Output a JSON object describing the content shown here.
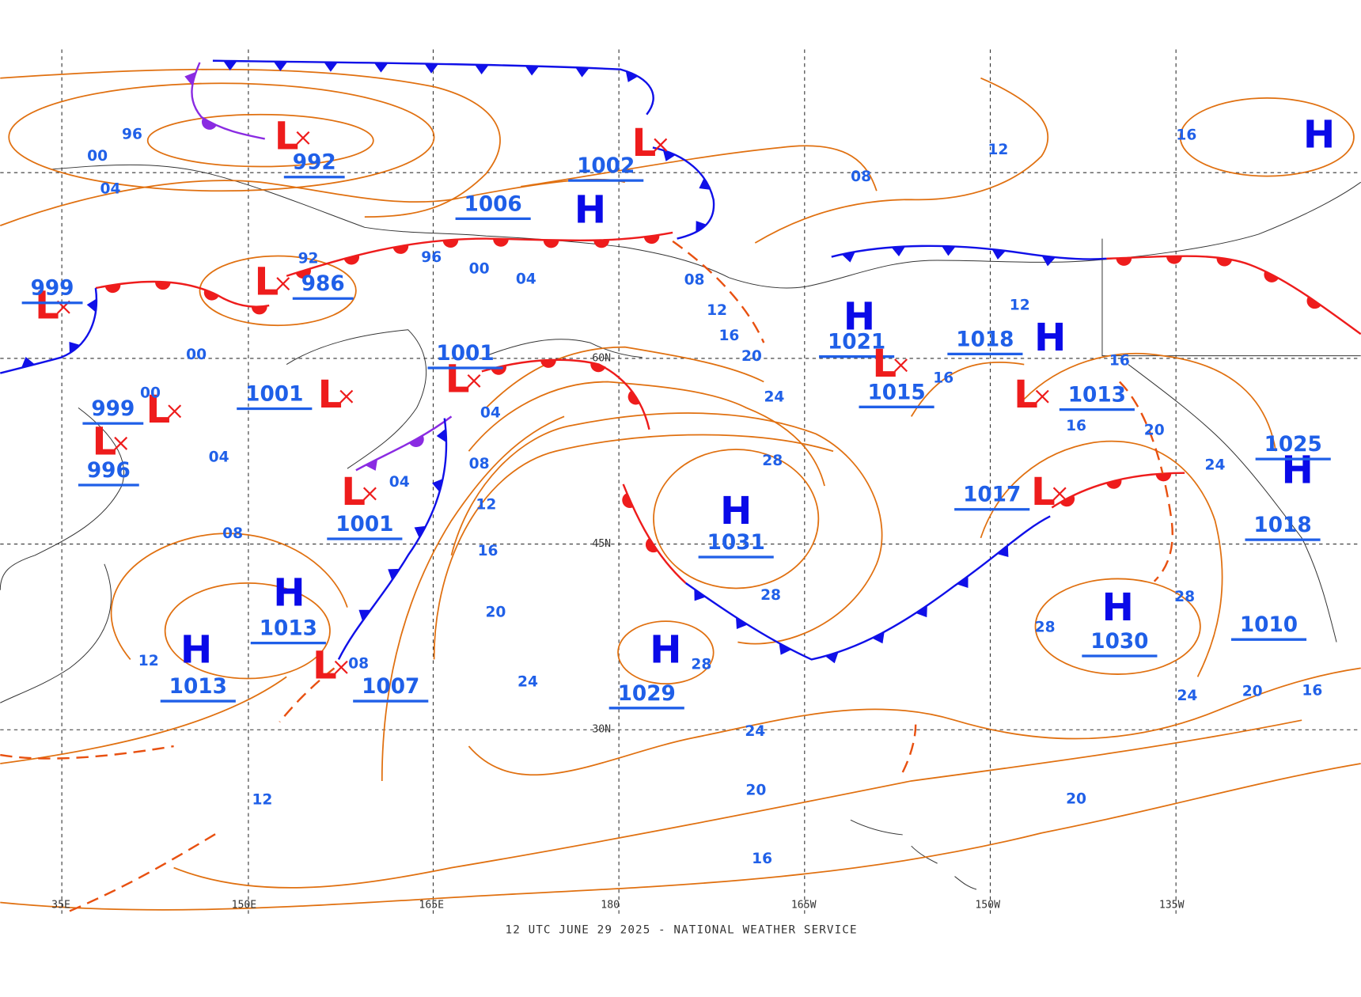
{
  "map": {
    "footer": "12 UTC JUNE 29 2025 - NATIONAL WEATHER SERVICE",
    "longitudes": [
      "35E",
      "150E",
      "165E",
      "180",
      "165W",
      "150W",
      "135W"
    ],
    "latitudes": [
      "60N",
      "45N",
      "30N"
    ],
    "centers": [
      {
        "type": "L",
        "pressure": 992
      },
      {
        "type": "L",
        "pressure": 986
      },
      {
        "type": "L",
        "pressure": 999
      },
      {
        "type": "L",
        "pressure": 999
      },
      {
        "type": "L",
        "pressure": 996
      },
      {
        "type": "L",
        "pressure": 1001
      },
      {
        "type": "L",
        "pressure": 1001
      },
      {
        "type": "L",
        "pressure": 1001
      },
      {
        "type": "L",
        "pressure": 1002
      },
      {
        "type": "H",
        "pressure": 1006
      },
      {
        "type": "H",
        "pressure": 1021
      },
      {
        "type": "L",
        "pressure": 1015
      },
      {
        "type": "H",
        "pressure": 1018
      },
      {
        "type": "L",
        "pressure": 1013
      },
      {
        "type": "L",
        "pressure": 1017
      },
      {
        "type": "H",
        "pressure": 1031
      },
      {
        "type": "H",
        "pressure": 1029
      },
      {
        "type": "H",
        "pressure": 1013
      },
      {
        "type": "H",
        "pressure": 1013
      },
      {
        "type": "L",
        "pressure": 1007
      },
      {
        "type": "H",
        "pressure": 1030
      },
      {
        "type": "H",
        "pressure": 1025
      },
      {
        "type": "H",
        "pressure": 1018
      },
      {
        "type": "H",
        "pressure": 1010
      },
      {
        "type": "H"
      }
    ],
    "isobar_labels": [
      "96",
      "00",
      "04",
      "92",
      "96",
      "00",
      "04",
      "08",
      "12",
      "16",
      "20",
      "24",
      "28",
      "28",
      "00",
      "00",
      "04",
      "04",
      "04",
      "08",
      "12",
      "16",
      "20",
      "24",
      "08",
      "12",
      "08",
      "12",
      "28",
      "24",
      "20",
      "16",
      "08",
      "12",
      "16",
      "12",
      "16",
      "16",
      "16",
      "20",
      "24",
      "28",
      "28",
      "24",
      "20",
      "16",
      "20"
    ]
  }
}
